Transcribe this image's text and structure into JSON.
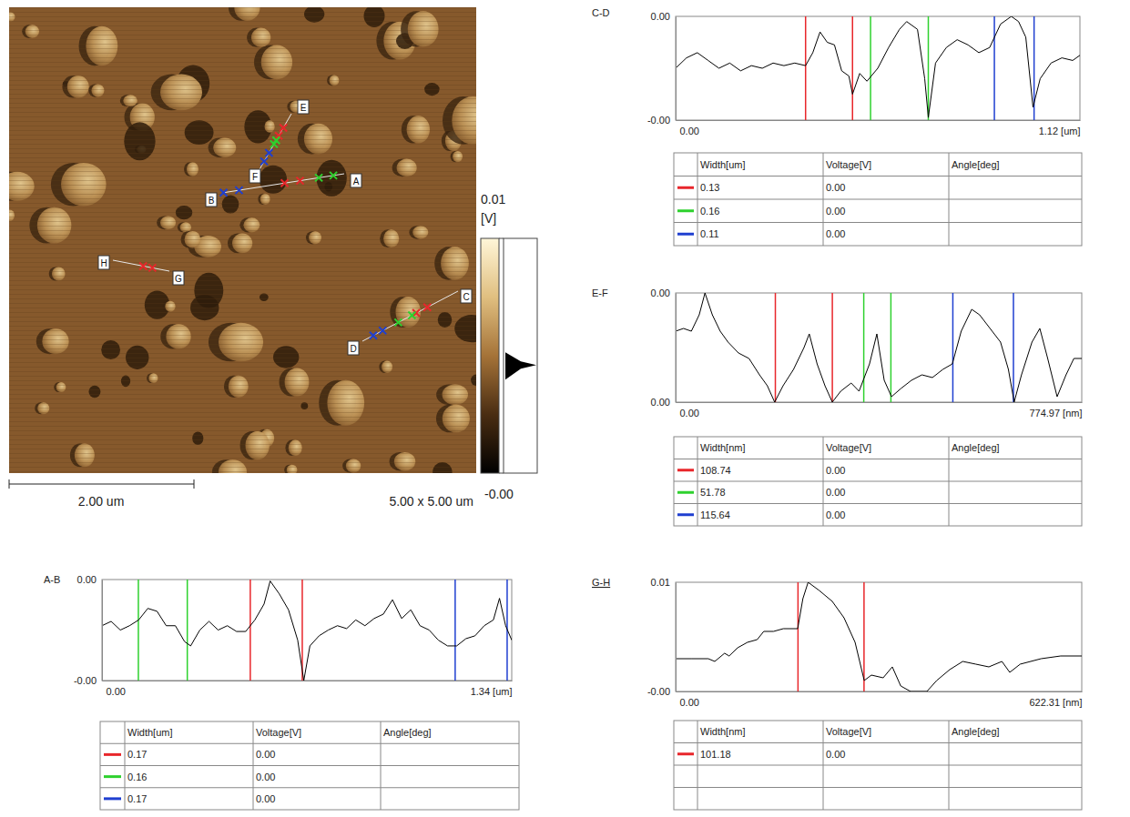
{
  "image": {
    "scale_bar": "2.00 um",
    "size": "5.00 x 5.00 um",
    "colorbar": {
      "range": [
        -0.002,
        0.006
      ],
      "ticks": [
        {
          "value": 0.006,
          "label": "0.01"
        },
        {
          "value": -0.002,
          "label": "-0.00"
        }
      ],
      "unit": "[V]"
    }
  },
  "chart_data": [
    {
      "type": "line",
      "title": "A-B",
      "line_labels": [
        "A",
        "B"
      ],
      "color": "#000000",
      "x": [
        0,
        0.03,
        0.06,
        0.09,
        0.12,
        0.15,
        0.18,
        0.21,
        0.24,
        0.27,
        0.29,
        0.32,
        0.35,
        0.38,
        0.41,
        0.44,
        0.47,
        0.5,
        0.53,
        0.55,
        0.58,
        0.61,
        0.64,
        0.66,
        0.68,
        0.71,
        0.74,
        0.77,
        0.8,
        0.83,
        0.86,
        0.89,
        0.92,
        0.95,
        0.98,
        1.01,
        1.04,
        1.07,
        1.1,
        1.13,
        1.16,
        1.19,
        1.22,
        1.25,
        1.28,
        1.3,
        1.32,
        1.34
      ],
      "values": [
        -0.0002,
        0.0001,
        -0.0005,
        -0.0002,
        0.0002,
        0.001,
        0.0008,
        -0.0002,
        -0.0002,
        -0.0013,
        -0.0016,
        -0.0005,
        0.0001,
        -0.0005,
        -0.0002,
        -0.0006,
        -0.0006,
        0.0002,
        0.0013,
        0.0029,
        0.002,
        0.0009,
        -0.0012,
        -0.004,
        -0.0016,
        -0.0009,
        -0.0005,
        -0.0002,
        -0.0004,
        0.0002,
        -0.0002,
        0.0003,
        0.0006,
        0.0016,
        0.0003,
        0.0009,
        -0.0002,
        -0.0005,
        -0.0012,
        -0.0016,
        -0.0016,
        -0.0011,
        -0.0009,
        -0.0002,
        0.0002,
        0.0017,
        -0.0002,
        -0.0012
      ],
      "xlim": [
        0,
        1.34
      ],
      "xticks": [
        {
          "value": 0,
          "label": "0.00"
        },
        {
          "value": 1.34,
          "label": "1.34 [um]"
        }
      ],
      "ylim": [
        -0.004,
        0.003
      ],
      "yticks": [
        {
          "value": 0.003,
          "label": "0.00"
        },
        {
          "value": -0.004,
          "label": "-0.00"
        }
      ],
      "cursors": [
        {
          "color": "#e8262b",
          "x": [
            0.485,
            0.655
          ]
        },
        {
          "color": "#2ed12e",
          "x": [
            0.119,
            0.279
          ]
        },
        {
          "color": "#1f3fd0",
          "x": [
            1.155,
            1.325
          ]
        }
      ],
      "table": {
        "columns": [
          "Width[um]",
          "Voltage[V]",
          "Angle[deg]"
        ],
        "rows": [
          [
            "0.17",
            "0.00"
          ],
          [
            "0.16",
            "0.00"
          ],
          [
            "0.17",
            "0.00"
          ]
        ]
      }
    },
    {
      "type": "line",
      "title": "C-D",
      "line_labels": [
        "C",
        "D"
      ],
      "color": "#000000",
      "x": [
        0,
        0.03,
        0.06,
        0.09,
        0.12,
        0.15,
        0.18,
        0.21,
        0.24,
        0.27,
        0.3,
        0.33,
        0.36,
        0.38,
        0.4,
        0.42,
        0.44,
        0.46,
        0.48,
        0.49,
        0.51,
        0.53,
        0.56,
        0.59,
        0.62,
        0.64,
        0.67,
        0.69,
        0.7,
        0.72,
        0.75,
        0.78,
        0.81,
        0.84,
        0.87,
        0.9,
        0.93,
        0.95,
        0.97,
        0.99,
        1.01,
        1.04,
        1.07,
        1.1,
        1.12
      ],
      "values": [
        0,
        0.0008,
        0.0012,
        0.0006,
        0,
        0.0004,
        -0.0002,
        0.0002,
        0,
        0.0004,
        0.0002,
        0.0004,
        0.0002,
        0.0012,
        0.0028,
        0.002,
        0.0018,
        -0.0002,
        -0.0006,
        -0.002,
        -0.0004,
        -0.001,
        0,
        0.0016,
        0.003,
        0.0036,
        0.003,
        -0.0008,
        -0.0038,
        0.0004,
        0.0016,
        0.0022,
        0.0018,
        0.0012,
        0.0016,
        0.0034,
        0.004,
        0.0036,
        0.0024,
        -0.003,
        -0.0008,
        0.0004,
        0.0008,
        0.0006,
        0.001
      ],
      "xlim": [
        0,
        1.12
      ],
      "xticks": [
        {
          "value": 0,
          "label": "0.00"
        },
        {
          "value": 1.12,
          "label": "1.12 [um]"
        }
      ],
      "ylim": [
        -0.004,
        0.004
      ],
      "yticks": [
        {
          "value": 0.004,
          "label": "0.00"
        },
        {
          "value": -0.004,
          "label": "-0.00"
        }
      ],
      "cursors": [
        {
          "color": "#e8262b",
          "x": [
            0.36,
            0.49
          ]
        },
        {
          "color": "#2ed12e",
          "x": [
            0.54,
            0.7
          ]
        },
        {
          "color": "#1f3fd0",
          "x": [
            0.883,
            0.993
          ]
        }
      ],
      "table": {
        "columns": [
          "Width[um]",
          "Voltage[V]",
          "Angle[deg]"
        ],
        "rows": [
          [
            "0.13",
            "0.00"
          ],
          [
            "0.16",
            "0.00"
          ],
          [
            "0.11",
            "0.00"
          ]
        ]
      }
    },
    {
      "type": "line",
      "title": "E-F",
      "line_labels": [
        "E",
        "F"
      ],
      "color": "#000000",
      "x": [
        0,
        15,
        30,
        45,
        56,
        70,
        85,
        100,
        120,
        140,
        160,
        175,
        189,
        205,
        225,
        245,
        255,
        270,
        285,
        299,
        315,
        335,
        350,
        358,
        370,
        384,
        398,
        412,
        430,
        450,
        470,
        490,
        510,
        528,
        545,
        565,
        580,
        600,
        620,
        635,
        646,
        660,
        680,
        695,
        710,
        728,
        745,
        760,
        774.97
      ],
      "values": [
        0.0031,
        0.0032,
        0.0031,
        0.0037,
        0.0045,
        0.0037,
        0.0031,
        0.0027,
        0.0023,
        0.0021,
        0.0015,
        0.0011,
        0.0005,
        0.0011,
        0.0017,
        0.0025,
        0.003,
        0.0019,
        0.0011,
        0.0005,
        0.0009,
        0.0012,
        0.0009,
        0.0013,
        0.0019,
        0.003,
        0.0013,
        0.0007,
        0.001,
        0.0013,
        0.0015,
        0.0014,
        0.0017,
        0.0019,
        0.0031,
        0.0039,
        0.0037,
        0.0032,
        0.0027,
        0.0017,
        0.0005,
        0.0015,
        0.0027,
        0.0032,
        0.0021,
        0.0007,
        0.0015,
        0.0021,
        0.0021
      ],
      "xlim": [
        0,
        774.97
      ],
      "xticks": [
        {
          "value": 0,
          "label": "0.00"
        },
        {
          "value": 774.97,
          "label": "774.97 [nm]"
        }
      ],
      "ylim": [
        0.0005,
        0.0045
      ],
      "yticks": [
        {
          "value": 0.0045,
          "label": "0.00"
        },
        {
          "value": 0.0005,
          "label": "0.00"
        }
      ],
      "cursors": [
        {
          "color": "#e8262b",
          "x": [
            190.3,
            299.04
          ]
        },
        {
          "color": "#2ed12e",
          "x": [
            359,
            410.78
          ]
        },
        {
          "color": "#1f3fd0",
          "x": [
            529,
            644.64
          ]
        }
      ],
      "table": {
        "columns": [
          "Width[nm]",
          "Voltage[V]",
          "Angle[deg]"
        ],
        "rows": [
          [
            "108.74",
            "0.00"
          ],
          [
            "51.78",
            "0.00"
          ],
          [
            "115.64",
            "0.00"
          ]
        ]
      }
    },
    {
      "type": "line",
      "title": "G-H",
      "line_labels": [
        "G",
        "H"
      ],
      "color": "#000000",
      "x": [
        0,
        25,
        50,
        60,
        75,
        82,
        95,
        110,
        125,
        135,
        150,
        165,
        187,
        195,
        203,
        220,
        240,
        258,
        275,
        289,
        300,
        318,
        332,
        345,
        360,
        385,
        400,
        420,
        440,
        460,
        480,
        500,
        512,
        528,
        560,
        590,
        622.31
      ],
      "values": [
        0.0004,
        0.0004,
        0.0004,
        0.0002,
        0.0008,
        0.0006,
        0.0012,
        0.0016,
        0.0018,
        0.0024,
        0.0024,
        0.0026,
        0.0026,
        0.0048,
        0.006,
        0.0054,
        0.0046,
        0.0034,
        0.0016,
        -0.0012,
        -0.0008,
        -0.001,
        -0.0002,
        -0.0016,
        -0.002,
        -0.002,
        -0.0012,
        -0.0004,
        0.0002,
        0,
        -0.0002,
        0.0002,
        -0.0006,
        0,
        0.0004,
        0.0006,
        0.0006
      ],
      "xlim": [
        0,
        622.31
      ],
      "xticks": [
        {
          "value": 0,
          "label": "0.00"
        },
        {
          "value": 622.31,
          "label": "622.31 [nm]"
        }
      ],
      "ylim": [
        -0.002,
        0.006
      ],
      "yticks": [
        {
          "value": 0.006,
          "label": "0.01"
        },
        {
          "value": -0.002,
          "label": "-0.00"
        }
      ],
      "cursors": [
        {
          "color": "#e8262b",
          "x": [
            187.5,
            288.68
          ]
        }
      ],
      "table": {
        "columns": [
          "Width[nm]",
          "Voltage[V]",
          "Angle[deg]"
        ],
        "rows": [
          [
            "101.18",
            "0.00"
          ]
        ]
      }
    }
  ]
}
